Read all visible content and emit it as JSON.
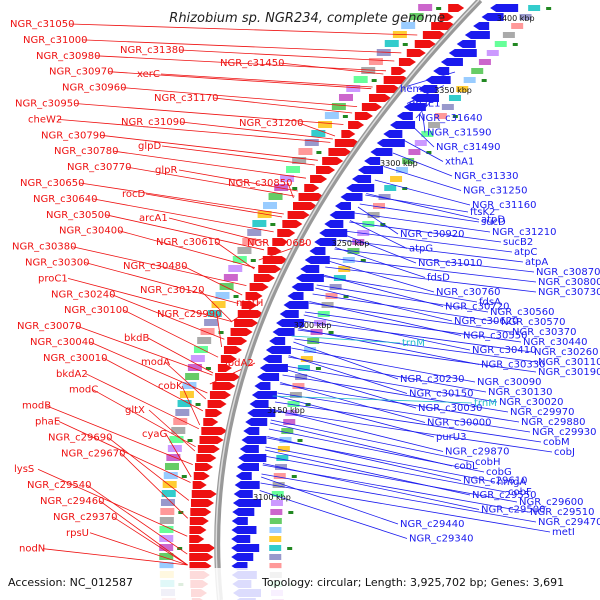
{
  "title": "Rhizobium sp. NGR234, complete genome",
  "footer": {
    "accession": "Accession: NC_012587",
    "topology": "Topology: circular; Length: 3,925,702 bp; Genes: 3,691"
  },
  "colors": {
    "forward": "#ee1111",
    "reverse": "#1a1aee",
    "trna": "#22bbcc",
    "backbone": "#888888"
  },
  "ticks": [
    "3400 kbp",
    "3350 kbp",
    "3300 kbp",
    "3250 kbp",
    "3200 kbp",
    "3150 kbp",
    "3100 kbp"
  ],
  "forward_labels": [
    "NGR_c31050",
    "NGR_c31000",
    "NGR_c30980",
    "NGR_c30970",
    "NGR_c30960",
    "NGR_c30950",
    "cheW2",
    "NGR_c30790",
    "NGR_c30780",
    "NGR_c30770",
    "NGR_c30650",
    "NGR_c30640",
    "NGR_c30500",
    "NGR_c30400",
    "NGR_c30380",
    "NGR_c30300",
    "proC1",
    "NGR_c30240",
    "NGR_c30100",
    "NGR_c30070",
    "NGR_c30040",
    "NGR_c30010",
    "bkdA2",
    "modC",
    "modB",
    "phaE",
    "NGR_c29690",
    "NGR_c29670",
    "lysS",
    "NGR_c29540",
    "NGR_c29460",
    "NGR_c29370",
    "rpsU",
    "nodN",
    "NGR_c31380",
    "xerC",
    "NGR_c31170",
    "NGR_c31090",
    "glpD",
    "glpR",
    "rocD",
    "arcA1",
    "NGR_c30610",
    "NGR_c30480",
    "NGR_c30120",
    "NGR_c29990",
    "bkdB",
    "modA",
    "cobK",
    "gltX",
    "cyaG",
    "NGR_c31450",
    "NGR_c31200",
    "NGR_c30850",
    "NGR_c30680",
    "metH",
    "lpdA2"
  ],
  "reverse_labels": [
    "hemC",
    "dnaE1",
    "NGR_c31640",
    "NGR_c31590",
    "NGR_c31490",
    "xthA1",
    "NGR_c31330",
    "NGR_c31250",
    "NGR_c31160",
    "atpD",
    "NGR_c30920",
    "atpG",
    "NGR_c31010",
    "fdsD",
    "NGR_c30760",
    "NGR_c30720",
    "NGR_c30620",
    "NGR_c30550",
    "NGR_c30410",
    "NGR_c30330",
    "NGR_c30230",
    "NGR_c30150",
    "NGR_c30030",
    "NGR_c30000",
    "purU3",
    "NGR_c29870",
    "cobL",
    "NGR_c29610",
    "NGR_c29550",
    "NGR_c29500",
    "NGR_c29440",
    "NGR_c29340",
    "ftsK2",
    "sucD",
    "NGR_c31210",
    "sucB2",
    "atpC",
    "atpA",
    "NGR_c30870",
    "NGR_c30800",
    "NGR_c30730",
    "fdsA",
    "NGR_c30560",
    "NGR_c30570",
    "NGR_c30370",
    "NGR_c30440",
    "NGR_c30260",
    "NGR_c30110",
    "NGR_c30190",
    "NGR_c30090",
    "NGR_c30130",
    "NGR_c30020",
    "NGR_c29970",
    "NGR_c29880",
    "NGR_c29930",
    "cobM",
    "cobJ",
    "cobH",
    "cobG",
    "hmgA",
    "cobF",
    "NGR_c29600",
    "NGR_c29510",
    "NGR_c29470",
    "metI"
  ],
  "trna_labels": [
    "trnM",
    "trnM"
  ]
}
